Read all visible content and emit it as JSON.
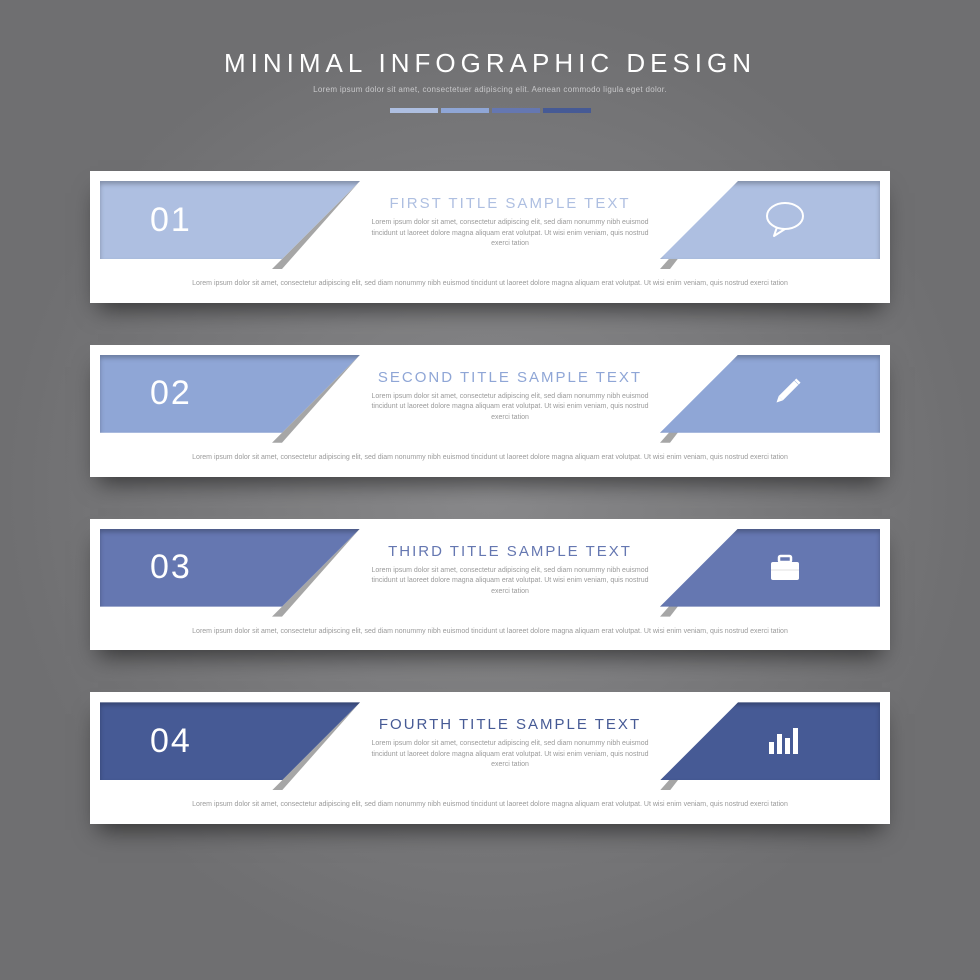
{
  "header": {
    "title": "MINIMAL INFOGRAPHIC DESIGN",
    "subtitle": "Lorem ipsum dolor sit amet, consectetuer adipiscing elit. Aenean commodo ligula eget dolor.",
    "accent_colors": [
      "#aebfe1",
      "#8fa6d6",
      "#6577b1",
      "#465a95"
    ]
  },
  "items": [
    {
      "number": "01",
      "title": "FIRST TITLE SAMPLE TEXT",
      "title_color": "#aebfe1",
      "block_color": "#aebfe1",
      "icon": "speech",
      "desc": "Lorem ipsum dolor sit amet, consectetur adipiscing elit, sed diam nonummy nibh euismod tincidunt ut laoreet dolore magna aliquam erat volutpat. Ut wisi enim veniam, quis nostrud exerci tation",
      "bottom": "Lorem ipsum dolor sit amet, consectetur adipiscing elit, sed diam nonummy nibh euismod tincidunt ut laoreet dolore magna aliquam erat volutpat. Ut wisi enim veniam, quis nostrud exerci tation"
    },
    {
      "number": "02",
      "title": "SECOND TITLE SAMPLE TEXT",
      "title_color": "#8fa6d6",
      "block_color": "#8fa6d6",
      "icon": "pencil",
      "desc": "Lorem ipsum dolor sit amet, consectetur adipiscing elit, sed diam nonummy nibh euismod tincidunt ut laoreet dolore magna aliquam erat volutpat. Ut wisi enim veniam, quis nostrud exerci tation",
      "bottom": "Lorem ipsum dolor sit amet, consectetur adipiscing elit, sed diam nonummy nibh euismod tincidunt ut laoreet dolore magna aliquam erat volutpat. Ut wisi enim veniam, quis nostrud exerci tation"
    },
    {
      "number": "03",
      "title": "THIRD TITLE SAMPLE TEXT",
      "title_color": "#6577b1",
      "block_color": "#6577b1",
      "icon": "briefcase",
      "desc": "Lorem ipsum dolor sit amet, consectetur adipiscing elit, sed diam nonummy nibh euismod tincidunt ut laoreet dolore magna aliquam erat volutpat. Ut wisi enim veniam, quis nostrud exerci tation",
      "bottom": "Lorem ipsum dolor sit amet, consectetur adipiscing elit, sed diam nonummy nibh euismod tincidunt ut laoreet dolore magna aliquam erat volutpat. Ut wisi enim veniam, quis nostrud exerci tation"
    },
    {
      "number": "04",
      "title": "FOURTH TITLE SAMPLE TEXT",
      "title_color": "#465a95",
      "block_color": "#465a95",
      "icon": "chart",
      "desc": "Lorem ipsum dolor sit amet, consectetur adipiscing elit, sed diam nonummy nibh euismod tincidunt ut laoreet dolore magna aliquam erat volutpat. Ut wisi enim veniam, quis nostrud exerci tation",
      "bottom": "Lorem ipsum dolor sit amet, consectetur adipiscing elit, sed diam nonummy nibh euismod tincidunt ut laoreet dolore magna aliquam erat volutpat. Ut wisi enim veniam, quis nostrud exerci tation"
    }
  ]
}
